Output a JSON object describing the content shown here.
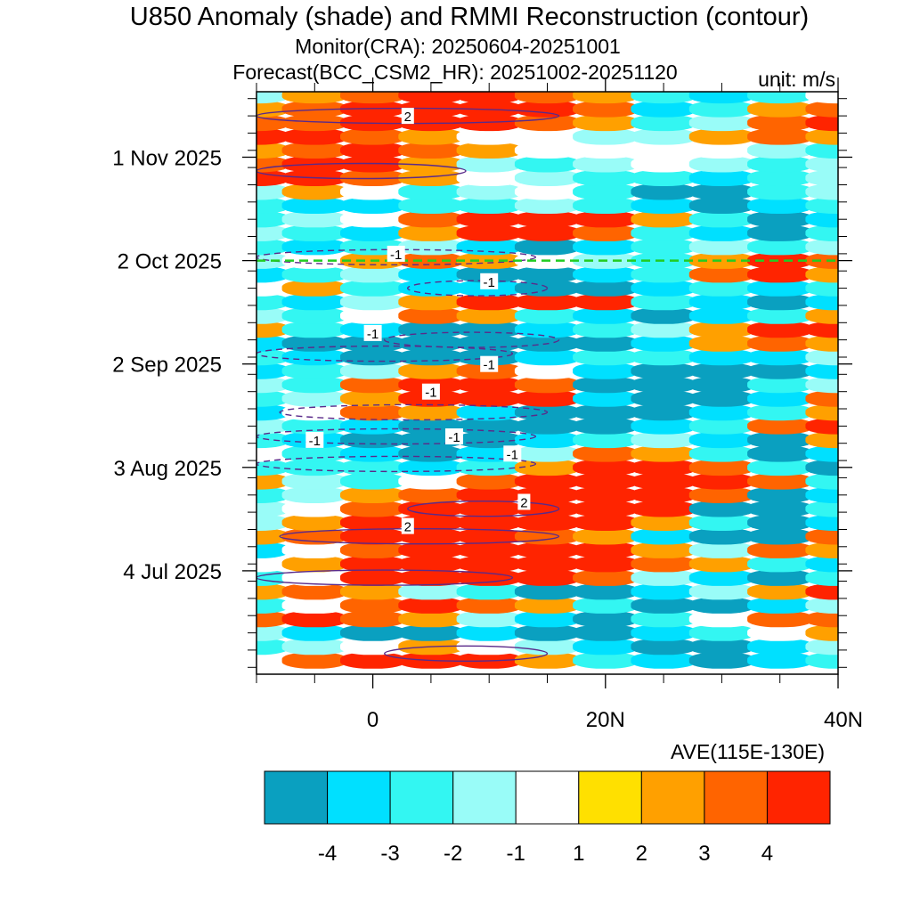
{
  "chart_data": {
    "type": "heatmap",
    "title": "U850 Anomaly (shade) and RMMI Reconstruction (contour)",
    "subtitle_monitor": "Monitor(CRA): 20250604-20251001",
    "subtitle_forecast": "Forecast(BCC_CSM2_HR): 20251002-20251120",
    "units_label": "unit: m/s",
    "x_average_label": "AVE(115E-130E)",
    "x_axis": {
      "range": [
        -10,
        40
      ],
      "ticks": [
        {
          "value": 0,
          "label": "0"
        },
        {
          "value": 20,
          "label": "20N"
        },
        {
          "value": 40,
          "label": "40N"
        }
      ]
    },
    "y_axis": {
      "range": [
        "2025-06-04",
        "2025-11-20"
      ],
      "ticks": [
        {
          "date": "2025-07-04",
          "label": "4 Jul 2025"
        },
        {
          "date": "2025-08-03",
          "label": "3 Aug 2025"
        },
        {
          "date": "2025-09-02",
          "label": "2 Sep 2025"
        },
        {
          "date": "2025-10-02",
          "label": "2 Oct 2025"
        },
        {
          "date": "2025-11-01",
          "label": "1 Nov 2025"
        }
      ]
    },
    "forecast_start_line": {
      "date": "2025-10-02",
      "color": "#22cc22"
    },
    "colorbar": {
      "levels": [
        "-4",
        "-3",
        "-2",
        "-1",
        "1",
        "2",
        "3",
        "4"
      ],
      "colors": [
        "#0aa0c0",
        "#00e0ff",
        "#33f6f2",
        "#99fcf8",
        "#ffffff",
        "#ffe000",
        "#ffa000",
        "#ff6400",
        "#ff2400"
      ]
    },
    "anomaly_bands": [
      {
        "date": "2025-06-08",
        "values": [
          1,
          3,
          4,
          4,
          4,
          2,
          -2,
          -3,
          -4,
          -3,
          -2
        ]
      },
      {
        "date": "2025-06-12",
        "values": [
          -2,
          -1,
          1,
          2,
          1,
          -1,
          -3,
          -4,
          -4,
          -3,
          -1
        ]
      },
      {
        "date": "2025-06-16",
        "values": [
          -1,
          -3,
          -4,
          -4,
          -3,
          -4,
          -4,
          -3,
          -2,
          1,
          2
        ]
      },
      {
        "date": "2025-06-20",
        "values": [
          3,
          4,
          3,
          2,
          -1,
          -3,
          -4,
          -2,
          1,
          3,
          3
        ]
      },
      {
        "date": "2025-06-24",
        "values": [
          -2,
          1,
          3,
          4,
          3,
          2,
          -2,
          -4,
          -4,
          -3,
          -1
        ]
      },
      {
        "date": "2025-06-28",
        "values": [
          2,
          3,
          2,
          -1,
          -2,
          -4,
          -4,
          -3,
          -1,
          2,
          4
        ]
      },
      {
        "date": "2025-07-02",
        "values": [
          -2,
          1,
          4,
          4,
          4,
          4,
          3,
          -1,
          -3,
          -4,
          -2
        ]
      },
      {
        "date": "2025-07-06",
        "values": [
          1,
          2,
          4,
          4,
          4,
          4,
          4,
          3,
          2,
          -2,
          -3
        ]
      },
      {
        "date": "2025-07-10",
        "values": [
          -3,
          1,
          3,
          4,
          4,
          4,
          4,
          2,
          -1,
          3,
          2
        ]
      },
      {
        "date": "2025-07-14",
        "values": [
          2,
          3,
          4,
          4,
          4,
          3,
          2,
          -3,
          -4,
          -4,
          3
        ]
      },
      {
        "date": "2025-07-18",
        "values": [
          -1,
          2,
          4,
          4,
          4,
          4,
          4,
          2,
          -2,
          -4,
          -3
        ]
      },
      {
        "date": "2025-07-22",
        "values": [
          -1,
          1,
          3,
          4,
          4,
          4,
          4,
          4,
          -4,
          -4,
          -2
        ]
      },
      {
        "date": "2025-07-26",
        "values": [
          -2,
          -1,
          2,
          3,
          4,
          4,
          4,
          4,
          3,
          -4,
          -3
        ]
      },
      {
        "date": "2025-07-30",
        "values": [
          2,
          -1,
          -2,
          1,
          3,
          4,
          4,
          4,
          4,
          3,
          -2
        ]
      },
      {
        "date": "2025-08-03",
        "values": [
          -2,
          -2,
          -2,
          -3,
          -2,
          2,
          4,
          4,
          3,
          -2,
          -4
        ]
      },
      {
        "date": "2025-08-07",
        "values": [
          1,
          -2,
          -3,
          -4,
          -3,
          -1,
          3,
          2,
          -2,
          -4,
          -3
        ]
      },
      {
        "date": "2025-08-11",
        "values": [
          -2,
          -3,
          -4,
          -4,
          -4,
          -3,
          -2,
          -1,
          -3,
          -4,
          2
        ]
      },
      {
        "date": "2025-08-15",
        "values": [
          -1,
          -2,
          -3,
          -4,
          -4,
          -4,
          -4,
          -3,
          -2,
          3,
          4
        ]
      },
      {
        "date": "2025-08-19",
        "values": [
          -3,
          1,
          3,
          2,
          -3,
          -4,
          -4,
          -4,
          -3,
          -2,
          2
        ]
      },
      {
        "date": "2025-08-23",
        "values": [
          -2,
          -1,
          2,
          4,
          4,
          4,
          -3,
          -4,
          -4,
          -3,
          3
        ]
      },
      {
        "date": "2025-08-27",
        "values": [
          -1,
          -2,
          3,
          4,
          4,
          3,
          -4,
          -4,
          -4,
          -2,
          -1
        ]
      },
      {
        "date": "2025-08-31",
        "values": [
          -3,
          -2,
          -1,
          2,
          3,
          1,
          -3,
          -4,
          -4,
          -4,
          -3
        ]
      },
      {
        "date": "2025-09-04",
        "values": [
          -2,
          -3,
          -4,
          -4,
          -4,
          -3,
          -2,
          -2,
          -3,
          -3,
          -1
        ]
      },
      {
        "date": "2025-09-08",
        "values": [
          -3,
          -4,
          -4,
          -4,
          -4,
          -4,
          -4,
          -3,
          2,
          3,
          2
        ]
      },
      {
        "date": "2025-09-12",
        "values": [
          2,
          -2,
          -3,
          -4,
          -4,
          -3,
          -2,
          -1,
          2,
          4,
          4
        ]
      },
      {
        "date": "2025-09-16",
        "values": [
          -1,
          -2,
          1,
          3,
          2,
          -2,
          -3,
          -4,
          -3,
          -2,
          2
        ]
      },
      {
        "date": "2025-09-20",
        "values": [
          -2,
          -3,
          -1,
          2,
          4,
          4,
          4,
          -2,
          -3,
          -4,
          -3
        ]
      },
      {
        "date": "2025-09-24",
        "values": [
          1,
          2,
          -2,
          -3,
          -3,
          -4,
          -4,
          -3,
          -2,
          -3,
          -2
        ]
      },
      {
        "date": "2025-09-28",
        "values": [
          -3,
          -2,
          -1,
          -3,
          -4,
          -4,
          -3,
          -2,
          3,
          4,
          2
        ]
      },
      {
        "date": "2025-10-02",
        "values": [
          -1,
          1,
          2,
          3,
          2,
          1,
          -1,
          -2,
          2,
          4,
          3
        ]
      },
      {
        "date": "2025-10-06",
        "values": [
          -2,
          -3,
          -2,
          -1,
          -3,
          -4,
          -3,
          -2,
          -1,
          -2,
          -1
        ]
      },
      {
        "date": "2025-10-10",
        "values": [
          -1,
          -2,
          -3,
          2,
          4,
          4,
          3,
          -2,
          -3,
          -4,
          -2
        ]
      },
      {
        "date": "2025-10-14",
        "values": [
          -2,
          -1,
          1,
          3,
          4,
          4,
          4,
          2,
          -2,
          -4,
          -3
        ]
      },
      {
        "date": "2025-10-18",
        "values": [
          -2,
          -3,
          -3,
          -2,
          -2,
          -1,
          -2,
          -3,
          -4,
          -3,
          -2
        ]
      },
      {
        "date": "2025-10-22",
        "values": [
          -1,
          2,
          1,
          -2,
          -1,
          1,
          -2,
          -4,
          -4,
          -2,
          -1
        ]
      },
      {
        "date": "2025-10-26",
        "values": [
          4,
          4,
          3,
          2,
          1,
          -1,
          -2,
          -2,
          -3,
          -2,
          -1
        ]
      },
      {
        "date": "2025-10-30",
        "values": [
          3,
          4,
          4,
          2,
          -1,
          -2,
          -1,
          1,
          -1,
          -2,
          -1
        ]
      },
      {
        "date": "2025-11-03",
        "values": [
          2,
          3,
          4,
          3,
          2,
          1,
          1,
          1,
          1,
          -1,
          -2
        ]
      },
      {
        "date": "2025-11-07",
        "values": [
          4,
          4,
          3,
          2,
          1,
          1,
          -1,
          -1,
          2,
          3,
          2
        ]
      },
      {
        "date": "2025-11-11",
        "values": [
          3,
          3,
          4,
          4,
          4,
          3,
          2,
          -2,
          -1,
          3,
          4
        ]
      },
      {
        "date": "2025-11-15",
        "values": [
          2,
          3,
          4,
          4,
          4,
          4,
          3,
          -3,
          -2,
          2,
          3
        ]
      },
      {
        "date": "2025-11-19",
        "values": [
          -1,
          2,
          3,
          4,
          4,
          3,
          2,
          -2,
          -3,
          -2,
          1
        ]
      }
    ],
    "anomaly_x_centers": [
      -10,
      -5,
      0,
      5,
      10,
      15,
      20,
      25,
      30,
      35,
      40
    ],
    "rmmi_contours": [
      {
        "level": 2,
        "dash": "solid",
        "date_center": "2025-06-10",
        "lat_min": 1,
        "lat_max": 15
      },
      {
        "level": 2,
        "dash": "solid",
        "date_center": "2025-07-02",
        "lat_min": -10,
        "lat_max": 12
      },
      {
        "level": 2,
        "dash": "solid",
        "date_center": "2025-07-14",
        "lat_min": -8,
        "lat_max": 16
      },
      {
        "level": 2,
        "dash": "solid",
        "date_center": "2025-07-22",
        "lat_min": 3,
        "lat_max": 16
      },
      {
        "level": -1,
        "dash": "dashed",
        "date_center": "2025-08-04",
        "lat_min": -10,
        "lat_max": 14
      },
      {
        "level": -1,
        "dash": "dashed",
        "date_center": "2025-08-12",
        "lat_min": -10,
        "lat_max": 14
      },
      {
        "level": -1,
        "dash": "dashed",
        "date_center": "2025-08-19",
        "lat_min": -8,
        "lat_max": 15
      },
      {
        "level": -1,
        "dash": "dashed",
        "date_center": "2025-09-05",
        "lat_min": -10,
        "lat_max": 12
      },
      {
        "level": -1,
        "dash": "dashed",
        "date_center": "2025-09-09",
        "lat_min": 1,
        "lat_max": 16
      },
      {
        "level": -1,
        "dash": "dashed",
        "date_center": "2025-09-24",
        "lat_min": 3,
        "lat_max": 15
      },
      {
        "level": -1,
        "dash": "dashed",
        "date_center": "2025-10-03",
        "lat_min": -10,
        "lat_max": 14
      },
      {
        "level": 2,
        "dash": "solid",
        "date_center": "2025-10-28",
        "lat_min": -10,
        "lat_max": 8
      },
      {
        "level": 2,
        "dash": "solid",
        "date_center": "2025-11-13",
        "lat_min": -10,
        "lat_max": 16
      }
    ],
    "contour_labels": [
      {
        "text": "2",
        "date": "2025-11-13",
        "lat": 3
      },
      {
        "text": "-1",
        "date": "2025-10-04",
        "lat": 2
      },
      {
        "text": "-1",
        "date": "2025-09-26",
        "lat": 10
      },
      {
        "text": "-1",
        "date": "2025-09-11",
        "lat": 0
      },
      {
        "text": "-1",
        "date": "2025-09-02",
        "lat": 10
      },
      {
        "text": "-1",
        "date": "2025-08-25",
        "lat": 5
      },
      {
        "text": "-1",
        "date": "2025-08-11",
        "lat": -5
      },
      {
        "text": "-1",
        "date": "2025-08-12",
        "lat": 7
      },
      {
        "text": "-1",
        "date": "2025-08-07",
        "lat": 12
      },
      {
        "text": "2",
        "date": "2025-07-24",
        "lat": 13
      },
      {
        "text": "2",
        "date": "2025-07-17",
        "lat": 3
      }
    ]
  }
}
